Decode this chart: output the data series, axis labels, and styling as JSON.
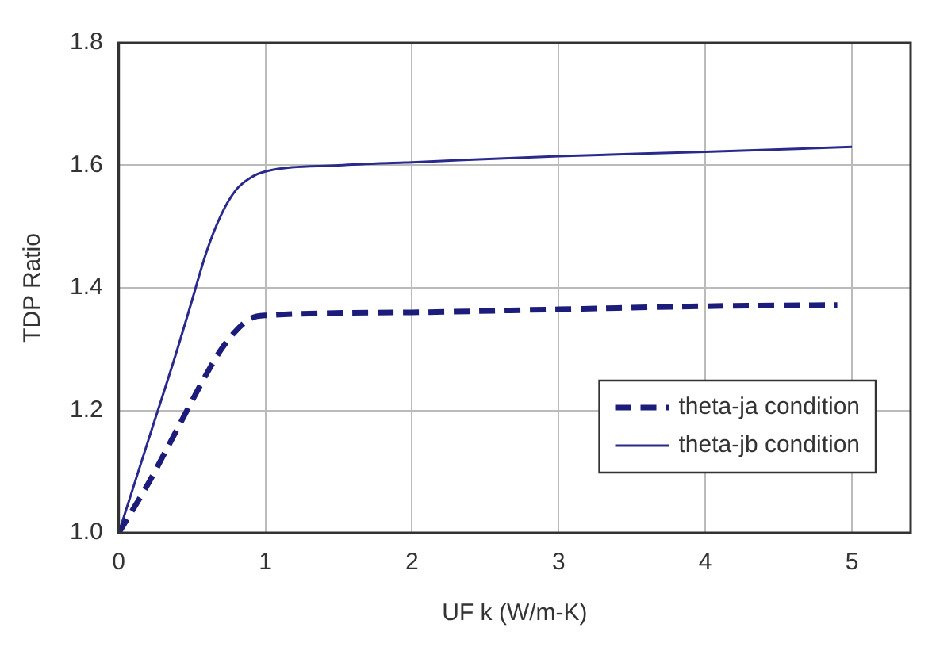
{
  "chart_data": {
    "type": "line",
    "xlabel": "UF k (W/m-K)",
    "ylabel": "TDP Ratio",
    "xlim": [
      0,
      5.4
    ],
    "xticks": [
      0,
      1,
      2,
      3,
      4,
      5
    ],
    "ylim": [
      1.0,
      1.8
    ],
    "yticks": [
      {
        "value": 1.0,
        "label": "1.0"
      },
      {
        "value": 1.2,
        "label": "1.2"
      },
      {
        "value": 1.4,
        "label": "1.4"
      },
      {
        "value": 1.6,
        "label": "1.6"
      },
      {
        "value": 1.8,
        "label": "1.8"
      }
    ],
    "grid": true,
    "legend": "bottom right",
    "marker": "none",
    "series": [
      {
        "name": "theta-ja condition",
        "color": "#1c1c7a",
        "line_style": "dashed",
        "x": [
          0,
          0.2,
          0.4,
          0.6,
          0.7,
          0.8,
          0.9,
          1.0,
          2,
          3,
          4,
          4.9
        ],
        "values": [
          1.0,
          1.08,
          1.17,
          1.26,
          1.3,
          1.33,
          1.35,
          1.355,
          1.36,
          1.365,
          1.37,
          1.372
        ]
      },
      {
        "name": "theta-jb condition",
        "color": "#2a2a8c",
        "line_style": "solid",
        "x": [
          0,
          0.2,
          0.4,
          0.5,
          0.6,
          0.7,
          0.8,
          0.9,
          1.0,
          1.5,
          2,
          3,
          4,
          5
        ],
        "values": [
          1.0,
          1.15,
          1.3,
          1.38,
          1.46,
          1.52,
          1.56,
          1.58,
          1.59,
          1.6,
          1.605,
          1.615,
          1.622,
          1.63
        ]
      }
    ]
  }
}
